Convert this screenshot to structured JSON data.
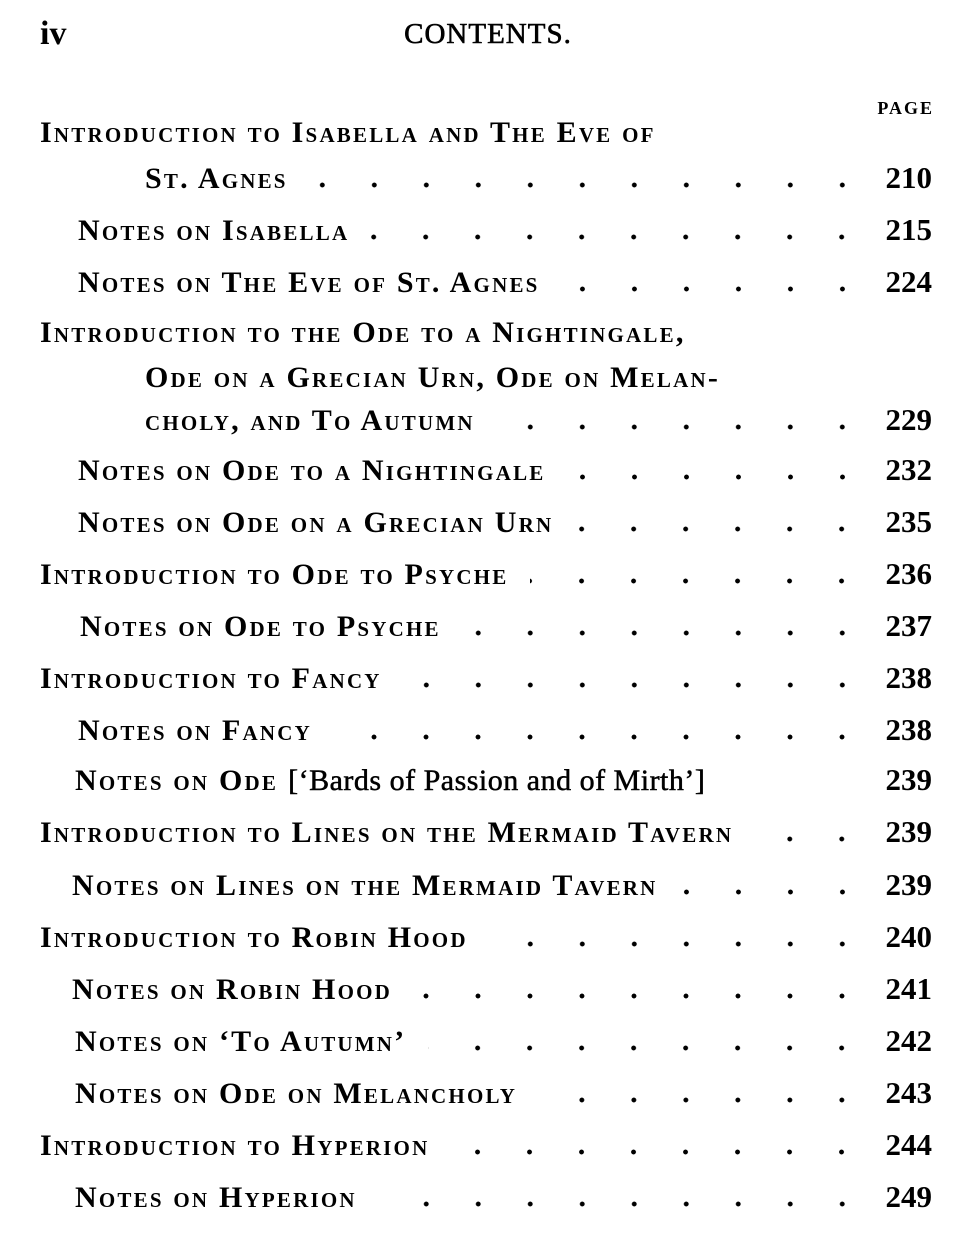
{
  "header": {
    "folio": "iv",
    "title": "CONTENTS.",
    "page_label": "PAGE"
  },
  "entries": [
    {
      "lines": [
        "Introduction to Isabella and The Eve of",
        "St. Agnes"
      ],
      "page": "210"
    },
    {
      "lines": [
        "Notes on Isabella"
      ],
      "page": "215"
    },
    {
      "lines": [
        "Notes on The Eve of St. Agnes"
      ],
      "page": "224"
    },
    {
      "lines": [
        "Introduction to the Ode to a Nightingale,",
        "Ode on a Grecian Urn, Ode on Melan-",
        "choly, and To Autumn"
      ],
      "page": "229"
    },
    {
      "lines": [
        "Notes on Ode to a Nightingale"
      ],
      "page": "232"
    },
    {
      "lines": [
        "Notes on Ode on a Grecian Urn"
      ],
      "page": "235"
    },
    {
      "lines": [
        "Introduction to Ode to Psyche"
      ],
      "page": "236"
    },
    {
      "lines": [
        "Notes on Ode to Psyche"
      ],
      "page": "237"
    },
    {
      "lines": [
        "Introduction to Fancy"
      ],
      "page": "238"
    },
    {
      "lines": [
        "Notes on Fancy"
      ],
      "page": "238"
    },
    {
      "lines": [
        "Notes on Ode"
      ],
      "extra": "[‘Bards of Passion and of Mirth’]",
      "page": "239"
    },
    {
      "lines": [
        "Introduction to Lines on the Mermaid Tavern"
      ],
      "page": "239"
    },
    {
      "lines": [
        "Notes on Lines on the Mermaid Tavern"
      ],
      "page": "239"
    },
    {
      "lines": [
        "Introduction to Robin Hood"
      ],
      "page": "240"
    },
    {
      "lines": [
        "Notes on Robin Hood"
      ],
      "page": "241"
    },
    {
      "lines": [
        "Notes on ‘To Autumn’"
      ],
      "page": "242"
    },
    {
      "lines": [
        "Notes on Ode on Melancholy"
      ],
      "page": "243"
    },
    {
      "lines": [
        "Introduction to Hyperion"
      ],
      "page": "244"
    },
    {
      "lines": [
        "Notes on Hyperion"
      ],
      "page": "249"
    }
  ]
}
